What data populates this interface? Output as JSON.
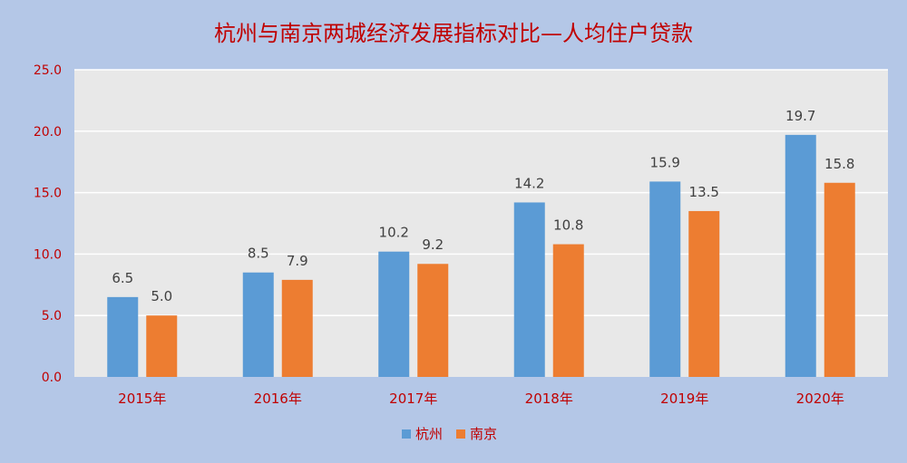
{
  "chart_data": {
    "type": "bar",
    "title": "杭州与南京两城经济发展指标对比—人均住户贷款",
    "categories": [
      "2015年",
      "2016年",
      "2017年",
      "2018年",
      "2019年",
      "2020年"
    ],
    "series": [
      {
        "name": "杭州",
        "values": [
          6.5,
          8.5,
          10.2,
          14.2,
          15.9,
          19.7
        ],
        "color": "#5b9bd5"
      },
      {
        "name": "南京",
        "values": [
          5.0,
          7.9,
          9.2,
          10.8,
          13.5,
          15.8
        ],
        "color": "#ed7d31"
      }
    ],
    "data_labels": [
      [
        "6.5",
        "8.5",
        "10.2",
        "14.2",
        "15.9",
        "19.7"
      ],
      [
        "5.0",
        "7.9",
        "9.2",
        "10.8",
        "13.5",
        "15.8"
      ]
    ],
    "ylim": [
      0,
      25
    ],
    "yticks": [
      "0.0",
      "5.0",
      "10.0",
      "15.0",
      "20.0",
      "25.0"
    ],
    "xlabel": "",
    "ylabel": "",
    "grid": true,
    "legend_position": "bottom",
    "colors": {
      "background": "#b4c7e7",
      "plot_area": "#e8e8e8",
      "title": "#c00000",
      "axis_text": "#c00000",
      "label_text": "#404040",
      "grid": "#ffffff"
    }
  }
}
